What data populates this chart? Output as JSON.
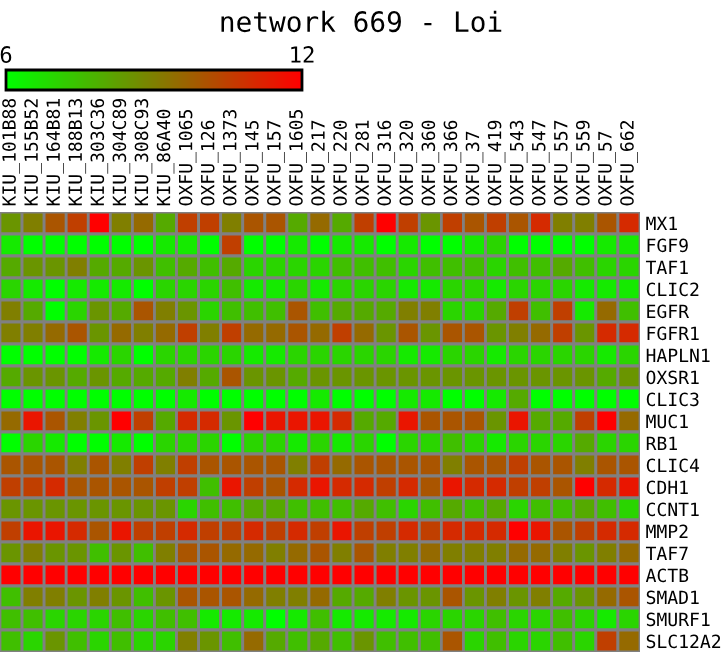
{
  "chart_data": {
    "type": "heatmap",
    "title": "network 669 - Loi",
    "categories": [
      "KIU_101B88",
      "KIU_155B52",
      "KIU_164B81",
      "KIU_188B13",
      "KIU_303C36",
      "KIU_304C89",
      "KIU_308C93",
      "KIU_86A40",
      "OXFU_1065",
      "OXFU_126",
      "OXFU_1373",
      "OXFU_145",
      "OXFU_157",
      "OXFU_1605",
      "OXFU_217",
      "OXFU_220",
      "OXFU_281",
      "OXFU_316",
      "OXFU_320",
      "OXFU_360",
      "OXFU_366",
      "OXFU_37",
      "OXFU_419",
      "OXFU_543",
      "OXFU_547",
      "OXFU_557",
      "OXFU_559",
      "OXFU_57",
      "OXFU_662"
    ],
    "y_categories": [
      "MX1",
      "FGF9",
      "TAF1",
      "CLIC2",
      "EGFR",
      "FGFR1",
      "HAPLN1",
      "OXSR1",
      "CLIC3",
      "MUC1",
      "RB1",
      "CLIC4",
      "CDH1",
      "CCNT1",
      "MMP2",
      "TAF7",
      "ACTB",
      "SMAD1",
      "SMURF1",
      "SLC12A2"
    ],
    "cells": [
      [
        8.5,
        9,
        10,
        10.5,
        12,
        9,
        9.5,
        8,
        10.5,
        10.5,
        9,
        10,
        10,
        8,
        9.5,
        8,
        10.5,
        12,
        10.5,
        8.5,
        10.5,
        10,
        10.5,
        10,
        11,
        9,
        9,
        10,
        11
      ],
      [
        6.5,
        6,
        6,
        6,
        6,
        6,
        6,
        6.5,
        6.5,
        6,
        10.5,
        6,
        6,
        6.5,
        6,
        6.5,
        6.5,
        6,
        6.5,
        6,
        6,
        6.5,
        7,
        6,
        6,
        6,
        6,
        6.5,
        6.5
      ],
      [
        8,
        8.5,
        8.5,
        9,
        8,
        8,
        8.5,
        7.5,
        8,
        7.5,
        8,
        7,
        7,
        7,
        7,
        7.5,
        7.5,
        7.5,
        7,
        7.5,
        7.5,
        7.5,
        7,
        7.5,
        7.5,
        8,
        7.5,
        7,
        7
      ],
      [
        7,
        6.5,
        6,
        6.5,
        6.5,
        6.5,
        6,
        7,
        7,
        7,
        7.5,
        6.5,
        6.5,
        7,
        6.5,
        7,
        7,
        7,
        6.5,
        6.5,
        7,
        7,
        6.5,
        7,
        7,
        7,
        6.5,
        6.5,
        6.5
      ],
      [
        9,
        8,
        6,
        7,
        8.5,
        8,
        10,
        9,
        8.5,
        7,
        7.5,
        7.5,
        7.5,
        10,
        7.5,
        8,
        8,
        8,
        9,
        9,
        7,
        7,
        8,
        10.5,
        7.5,
        10.5,
        6.5,
        9.5,
        7.5
      ],
      [
        9,
        9,
        9.5,
        10,
        8.5,
        9.5,
        9,
        9.5,
        10.5,
        9,
        10.5,
        9.5,
        9.5,
        10,
        9.5,
        10.5,
        9.5,
        8.5,
        10,
        8.5,
        10,
        10,
        8.5,
        9,
        9.5,
        10.5,
        8.5,
        11,
        11
      ],
      [
        6,
        6,
        6,
        6,
        6.5,
        7,
        6,
        7,
        7,
        7,
        7,
        6.5,
        6.5,
        7,
        7,
        7,
        7,
        7,
        6.5,
        6.5,
        7,
        7,
        6.5,
        7,
        7,
        7,
        7,
        6.5,
        7
      ],
      [
        8,
        8.5,
        8.5,
        8,
        8.5,
        8,
        8,
        8,
        9,
        8,
        10,
        8.5,
        8.5,
        8,
        8.5,
        8.5,
        8.5,
        8.5,
        8.5,
        8.5,
        8.5,
        8.5,
        8.5,
        8.5,
        8.5,
        8.5,
        8.5,
        8,
        8.5
      ],
      [
        6,
        6,
        6,
        6,
        6,
        6,
        6,
        6,
        6.5,
        6,
        6,
        6,
        6,
        6,
        6.5,
        6,
        6,
        6,
        6.5,
        6.5,
        6,
        6,
        6.5,
        8,
        6,
        6,
        6,
        6,
        6
      ],
      [
        9.5,
        11.5,
        10,
        9,
        8.5,
        12,
        10.5,
        8,
        11,
        11,
        8.5,
        12,
        11.5,
        11.5,
        11.5,
        11,
        8,
        8,
        11.5,
        10,
        10,
        10,
        8.5,
        11.5,
        8,
        8,
        10.5,
        12,
        9.5
      ],
      [
        6,
        7,
        6.5,
        6,
        6,
        6.5,
        6,
        7,
        7,
        7,
        6,
        7,
        7,
        6.5,
        7,
        6.5,
        7,
        6,
        7,
        7,
        7.5,
        7,
        6.5,
        7,
        7,
        7,
        8,
        7,
        7
      ],
      [
        10,
        10,
        10,
        9,
        10,
        9,
        10.5,
        9,
        10.5,
        10,
        10,
        10,
        10,
        9,
        10.5,
        9.5,
        10,
        10,
        10,
        10,
        9,
        10,
        10,
        10.5,
        10,
        10,
        9,
        10,
        10
      ],
      [
        10.5,
        10.5,
        11,
        10,
        10,
        10,
        10,
        10.5,
        10.5,
        7.5,
        11.5,
        10.5,
        10,
        11,
        11.5,
        11,
        11,
        10.5,
        11,
        10,
        11.5,
        11,
        11,
        10.5,
        10.5,
        10,
        12,
        11,
        11.5
      ],
      [
        8.5,
        8.5,
        8.5,
        8.5,
        8.5,
        8.5,
        8.5,
        8.5,
        7,
        7.5,
        7.5,
        8,
        8,
        7.5,
        7.5,
        7.5,
        8,
        7.5,
        7,
        7.5,
        8,
        7.5,
        8,
        7,
        7.5,
        7.5,
        8,
        7.5,
        7
      ],
      [
        10.5,
        11.5,
        11.5,
        11,
        10,
        11.5,
        10.5,
        10.5,
        11,
        10.5,
        10.5,
        11,
        10.5,
        11,
        10.5,
        11.5,
        10.5,
        10.5,
        11,
        10.5,
        11,
        11,
        11,
        12,
        11.5,
        10,
        10.5,
        11,
        11
      ],
      [
        8.5,
        9,
        8.5,
        8.5,
        7.5,
        8.5,
        7.5,
        9,
        10,
        10,
        9.5,
        9.5,
        9,
        9.5,
        10,
        9,
        10,
        9,
        9,
        9.5,
        9,
        9,
        9,
        9.5,
        9.5,
        9,
        8.5,
        9,
        9.5
      ],
      [
        12,
        12,
        12,
        12,
        12,
        12,
        12,
        12,
        12,
        12,
        12,
        12,
        12,
        12,
        12,
        12,
        12,
        12,
        12,
        12,
        12,
        12,
        12,
        12,
        12,
        12,
        12,
        12,
        12
      ],
      [
        7.5,
        9,
        9,
        8.5,
        9,
        8.5,
        7.5,
        8.5,
        10,
        10,
        10,
        9.5,
        9,
        9,
        9.5,
        8,
        8,
        9,
        8.5,
        8.5,
        10,
        8.5,
        9,
        8.5,
        9,
        8,
        8.5,
        9.5,
        10
      ],
      [
        7.5,
        7.5,
        7,
        7,
        7,
        7.5,
        7,
        7.5,
        7.5,
        6.5,
        6.5,
        6.5,
        6,
        6.5,
        7.5,
        6.5,
        6.5,
        6.5,
        6.5,
        7,
        7,
        7,
        7.5,
        7,
        7,
        7.5,
        7,
        6.5,
        7
      ],
      [
        7.5,
        7,
        8.5,
        7.5,
        7,
        7.5,
        7,
        7,
        9,
        8.5,
        7.5,
        9.5,
        8,
        7.5,
        8,
        7.5,
        8.5,
        7.5,
        7.5,
        7.5,
        10,
        7,
        7.5,
        7,
        7,
        7.5,
        7,
        10.5,
        9.5
      ]
    ],
    "clim": [
      6,
      12
    ],
    "cticks": [
      6,
      12
    ]
  }
}
